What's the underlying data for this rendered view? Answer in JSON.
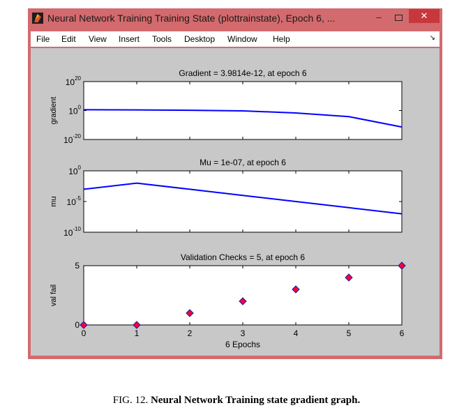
{
  "window": {
    "title": "Neural Network Training Training State (plottrainstate), Epoch 6, ...",
    "minimize_label": "–",
    "close_label": "✕",
    "app_icon": "matlab-icon"
  },
  "menu": {
    "items": [
      "File",
      "Edit",
      "View",
      "Insert",
      "Tools",
      "Desktop",
      "Window",
      "Help"
    ],
    "dock_arrow": "↘"
  },
  "chart_data": [
    {
      "type": "line",
      "title": "Gradient = 3.9814e-12, at epoch 6",
      "ylabel": "gradient",
      "xlabel": "",
      "y_scale": "log",
      "ylim": [
        1e-20,
        1e+20
      ],
      "xlim": [
        0,
        6
      ],
      "ytick_labels": [
        {
          "base": "10",
          "exp": "20"
        },
        {
          "base": "10",
          "exp": "0"
        },
        {
          "base": "10",
          "exp": "-20"
        }
      ],
      "x": [
        0,
        1,
        2,
        3,
        4,
        5,
        6
      ],
      "series": [
        {
          "values": [
            3.5,
            2.5,
            1.6,
            0.6,
            0.02,
            6e-05,
            3.9814e-12
          ],
          "color": "#0000ff"
        }
      ],
      "grid": false
    },
    {
      "type": "line",
      "title": "Mu = 1e-07, at epoch 6",
      "ylabel": "mu",
      "xlabel": "",
      "y_scale": "log",
      "ylim": [
        1e-10,
        1
      ],
      "xlim": [
        0,
        6
      ],
      "ytick_labels": [
        {
          "base": "10",
          "exp": "0"
        },
        {
          "base": "10",
          "exp": "-5"
        },
        {
          "base": "10",
          "exp": "-10"
        }
      ],
      "x": [
        0,
        1,
        2,
        3,
        4,
        5,
        6
      ],
      "series": [
        {
          "values": [
            0.001,
            0.01,
            0.001,
            0.0001,
            1e-05,
            1e-06,
            1e-07
          ],
          "color": "#0000ff"
        }
      ],
      "grid": false
    },
    {
      "type": "scatter",
      "title": "Validation Checks = 5, at epoch 6",
      "ylabel": "val fail",
      "xlabel": "6 Epochs",
      "ylim": [
        0,
        5
      ],
      "xlim": [
        0,
        6
      ],
      "ytick_labels": [
        "0",
        "5"
      ],
      "xtick_labels": [
        "0",
        "1",
        "2",
        "3",
        "4",
        "5",
        "6"
      ],
      "x": [
        0,
        1,
        2,
        3,
        4,
        5,
        6
      ],
      "series": [
        {
          "values": [
            0,
            0,
            1,
            2,
            3,
            4,
            5
          ],
          "color": "#ff0033",
          "edge_color": "#1a1aa0",
          "marker": "diamond"
        }
      ],
      "grid": false
    }
  ],
  "caption": {
    "prefix": "FIG. 12.",
    "text": "Neural Network Training state gradient graph."
  }
}
